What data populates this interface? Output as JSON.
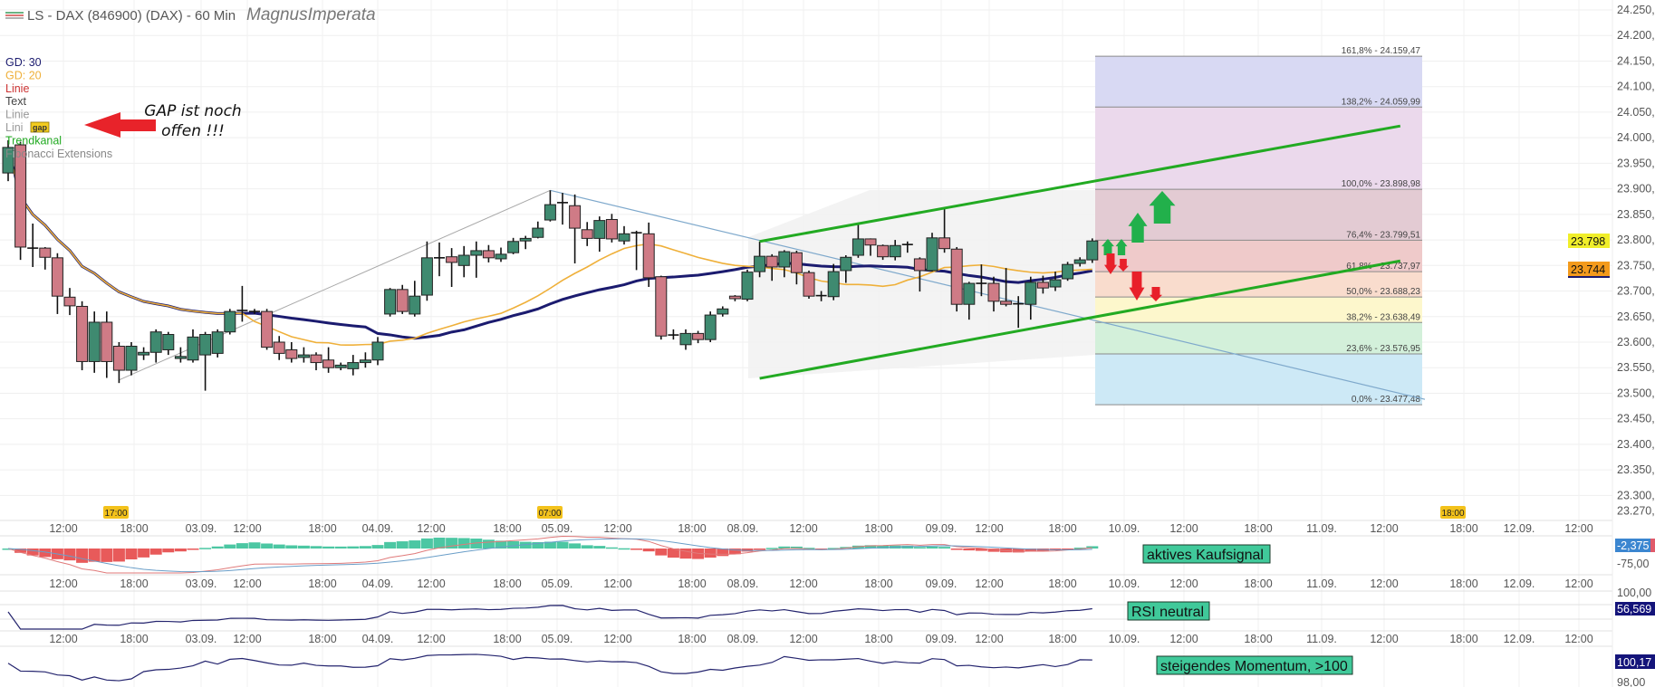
{
  "header": {
    "title": "LS - DAX (846900) (DAX) - 60 Min",
    "author": "MagnusImperata"
  },
  "legend": [
    {
      "label": "GD: 30",
      "color": "#1b1b6f"
    },
    {
      "label": "GD: 20",
      "color": "#efb03a"
    },
    {
      "label": "Linie",
      "color": "#cc3333"
    },
    {
      "label": "Text",
      "color": "#444444"
    },
    {
      "label": "Linie",
      "color": "#999999"
    },
    {
      "label": "Lini",
      "color": "#999999"
    },
    {
      "label": "Trendkanal",
      "color": "#22aa22"
    },
    {
      "label": "Fibonacci Extensions",
      "color": "#888888"
    }
  ],
  "gap_badge": "gap",
  "annotation": {
    "line1": "GAP ist noch",
    "line2": "offen !!!"
  },
  "colors": {
    "up": "#3f8a70",
    "down": "#cf7b86",
    "gd30": "#1b1b6f",
    "gd20": "#efb03a",
    "channel": "#22aa22",
    "signal_box": "#40c99a",
    "arrow_up": "#22b04b",
    "arrow_down": "#e8202a"
  },
  "chart_data": {
    "type": "candlestick",
    "timeframe": "60 Min",
    "y_ticks": [
      "24.250,00",
      "24.200,00",
      "24.150,00",
      "24.100,00",
      "24.050,00",
      "24.000,00",
      "23.950,00",
      "23.900,00",
      "23.850,00",
      "23.800,00",
      "23.750,00",
      "23.700,00",
      "23.650,00",
      "23.600,00",
      "23.550,00",
      "23.500,00",
      "23.450,00",
      "23.400,00",
      "23.350,00",
      "23.300,00",
      "23.270,00"
    ],
    "ylim": [
      23270,
      24250
    ],
    "last_price": "23.798",
    "gd_price": "23.744",
    "x_labels": [
      "12:00",
      "18:00",
      "03.09.",
      "12:00",
      "18:00",
      "04.09.",
      "12:00",
      "18:00",
      "05.09.",
      "12:00",
      "18:00",
      "08.09.",
      "12:00",
      "18:00",
      "09.09.",
      "12:00",
      "18:00",
      "10.09.",
      "12:00",
      "18:00",
      "11.09.",
      "12:00",
      "18:00",
      "12.09.",
      "12:00"
    ],
    "x_badges": [
      "17:00",
      "07:00",
      "18:00"
    ],
    "ohlc": [
      [
        23931,
        23995,
        23915,
        23981
      ],
      [
        23986,
        23992,
        23761,
        23786
      ],
      [
        23784,
        23832,
        23747,
        23782
      ],
      [
        23784,
        23786,
        23742,
        23766
      ],
      [
        23765,
        23774,
        23655,
        23690
      ],
      [
        23688,
        23706,
        23653,
        23671
      ],
      [
        23670,
        23680,
        23545,
        23562
      ],
      [
        23562,
        23660,
        23540,
        23639
      ],
      [
        23639,
        23660,
        23530,
        23562
      ],
      [
        23592,
        23600,
        23520,
        23545
      ],
      [
        23545,
        23600,
        23535,
        23592
      ],
      [
        23575,
        23590,
        23565,
        23580
      ],
      [
        23580,
        23625,
        23560,
        23620
      ],
      [
        23585,
        23620,
        23575,
        23615
      ],
      [
        23568,
        23590,
        23560,
        23572
      ],
      [
        23565,
        23625,
        23560,
        23610
      ],
      [
        23575,
        23620,
        23505,
        23615
      ],
      [
        23578,
        23625,
        23570,
        23620
      ],
      [
        23620,
        23665,
        23615,
        23660
      ],
      [
        23660,
        23710,
        23640,
        23662
      ],
      [
        23660,
        23665,
        23655,
        23660
      ],
      [
        23660,
        23665,
        23585,
        23590
      ],
      [
        23600,
        23612,
        23565,
        23578
      ],
      [
        23585,
        23600,
        23560,
        23568
      ],
      [
        23570,
        23590,
        23560,
        23575
      ],
      [
        23575,
        23580,
        23545,
        23560
      ],
      [
        23565,
        23590,
        23540,
        23550
      ],
      [
        23550,
        23560,
        23545,
        23555
      ],
      [
        23548,
        23575,
        23535,
        23560
      ],
      [
        23560,
        23580,
        23550,
        23565
      ],
      [
        23565,
        23610,
        23555,
        23600
      ],
      [
        23655,
        23706,
        23650,
        23703
      ],
      [
        23703,
        23712,
        23655,
        23660
      ],
      [
        23655,
        23720,
        23650,
        23690
      ],
      [
        23692,
        23797,
        23681,
        23765
      ],
      [
        23765,
        23795,
        23729,
        23765
      ],
      [
        23767,
        23784,
        23708,
        23756
      ],
      [
        23750,
        23788,
        23727,
        23770
      ],
      [
        23770,
        23797,
        23726,
        23779
      ],
      [
        23779,
        23790,
        23756,
        23765
      ],
      [
        23763,
        23785,
        23757,
        23772
      ],
      [
        23775,
        23804,
        23772,
        23797
      ],
      [
        23798,
        23808,
        23782,
        23803
      ],
      [
        23805,
        23836,
        23803,
        23823
      ],
      [
        23839,
        23897,
        23836,
        23869
      ],
      [
        23873,
        23892,
        23830,
        23872
      ],
      [
        23867,
        23889,
        23754,
        23823
      ],
      [
        23820,
        23835,
        23788,
        23803
      ],
      [
        23803,
        23846,
        23777,
        23838
      ],
      [
        23840,
        23851,
        23795,
        23802
      ],
      [
        23798,
        23827,
        23791,
        23812
      ],
      [
        23814,
        23818,
        23741,
        23813
      ],
      [
        23812,
        23834,
        23708,
        23726
      ],
      [
        23728,
        23730,
        23605,
        23612
      ],
      [
        23612,
        23625,
        23605,
        23614
      ],
      [
        23595,
        23625,
        23585,
        23617
      ],
      [
        23617,
        23622,
        23598,
        23605
      ],
      [
        23605,
        23660,
        23600,
        23653
      ],
      [
        23655,
        23670,
        23650,
        23665
      ],
      [
        23690,
        23692,
        23680,
        23685
      ],
      [
        23684,
        23742,
        23680,
        23737
      ],
      [
        23738,
        23797,
        23727,
        23768
      ],
      [
        23768,
        23772,
        23720,
        23747
      ],
      [
        23747,
        23780,
        23727,
        23777
      ],
      [
        23775,
        23779,
        23713,
        23736
      ],
      [
        23736,
        23740,
        23685,
        23690
      ],
      [
        23690,
        23700,
        23680,
        23691
      ],
      [
        23689,
        23753,
        23682,
        23738
      ],
      [
        23740,
        23770,
        23716,
        23766
      ],
      [
        23770,
        23830,
        23765,
        23802
      ],
      [
        23802,
        23803,
        23769,
        23790
      ],
      [
        23789,
        23791,
        23761,
        23767
      ],
      [
        23767,
        23800,
        23760,
        23789
      ],
      [
        23790,
        23797,
        23775,
        23791
      ],
      [
        23763,
        23766,
        23699,
        23740
      ],
      [
        23740,
        23814,
        23738,
        23804
      ],
      [
        23804,
        23862,
        23775,
        23783
      ],
      [
        23782,
        23786,
        23660,
        23674
      ],
      [
        23674,
        23718,
        23644,
        23715
      ],
      [
        23715,
        23752,
        23690,
        23714
      ],
      [
        23715,
        23728,
        23660,
        23680
      ],
      [
        23680,
        23745,
        23670,
        23674
      ],
      [
        23674,
        23690,
        23628,
        23675
      ],
      [
        23674,
        23728,
        23644,
        23717
      ],
      [
        23717,
        23730,
        23695,
        23706
      ],
      [
        23708,
        23738,
        23700,
        23722
      ],
      [
        23724,
        23757,
        23720,
        23752
      ],
      [
        23754,
        23766,
        23748,
        23761
      ],
      [
        23761,
        23803,
        23755,
        23798
      ]
    ],
    "fibonacci": [
      {
        "label": "161,8% - 24.159,47",
        "price": 24159.47,
        "fill": "#d8d9f3"
      },
      {
        "label": "138,2% - 24.059,99",
        "price": 24059.99,
        "fill": "#ebd9ec"
      },
      {
        "label": "100,0% - 23.898,98",
        "price": 23898.98,
        "fill": "#e3cbd3"
      },
      {
        "label": "76,4% - 23.799,51",
        "price": 23799.51,
        "fill": "#efcaca"
      },
      {
        "label": "61,8% - 23.737,97",
        "price": 23737.97,
        "fill": "#f9dccd"
      },
      {
        "label": "50,0% - 23.688,23",
        "price": 23688.23,
        "fill": "#fdf7cc"
      },
      {
        "label": "38,2% - 23.638,49",
        "price": 23638.49,
        "fill": "#d3f0da"
      },
      {
        "label": "23,6% - 23.576,95",
        "price": 23576.95,
        "fill": "#cde9f6"
      },
      {
        "label": "0,0% - 23.477,48",
        "price": 23477.48,
        "fill": ""
      }
    ],
    "trend_channel": {
      "upper": [
        [
          61,
          23797
        ],
        [
          113,
          24023
        ]
      ],
      "lower": [
        [
          61,
          23529
        ],
        [
          113,
          23759
        ]
      ]
    },
    "lines": {
      "grey": [
        [
          9,
          23526
        ],
        [
          44,
          23897
        ]
      ],
      "blue": [
        [
          44,
          23897
        ],
        [
          115,
          23488
        ]
      ]
    },
    "indicators": {
      "macd": {
        "signal_text": "aktives Kaufsignal",
        "value": "-2,375",
        "tick": "-75,00"
      },
      "rsi": {
        "signal_text": "RSI neutral",
        "value": "56,569",
        "tick": "100,00"
      },
      "momentum": {
        "signal_text": "steigendes Momentum, >100",
        "value": "100,17",
        "tick": "98,00"
      }
    }
  }
}
